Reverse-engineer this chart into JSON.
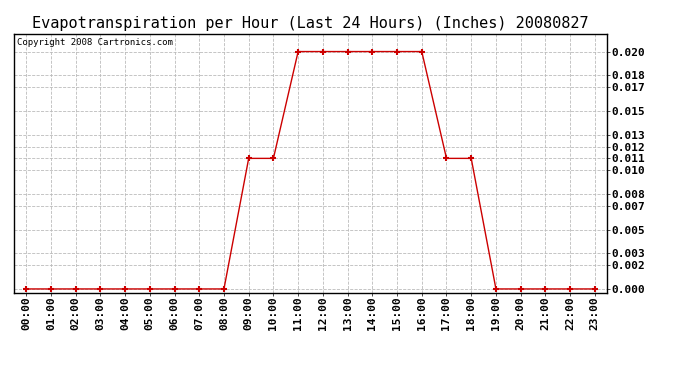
{
  "title": "Evapotranspiration per Hour (Last 24 Hours) (Inches) 20080827",
  "copyright_text": "Copyright 2008 Cartronics.com",
  "hours": [
    0,
    1,
    2,
    3,
    4,
    5,
    6,
    7,
    8,
    9,
    10,
    11,
    12,
    13,
    14,
    15,
    16,
    17,
    18,
    19,
    20,
    21,
    22,
    23
  ],
  "hour_labels": [
    "00:00",
    "01:00",
    "02:00",
    "03:00",
    "04:00",
    "05:00",
    "06:00",
    "07:00",
    "08:00",
    "09:00",
    "10:00",
    "11:00",
    "12:00",
    "13:00",
    "14:00",
    "15:00",
    "16:00",
    "17:00",
    "18:00",
    "19:00",
    "20:00",
    "21:00",
    "22:00",
    "23:00"
  ],
  "values": [
    0.0,
    0.0,
    0.0,
    0.0,
    0.0,
    0.0,
    0.0,
    0.0,
    0.0,
    0.011,
    0.011,
    0.02,
    0.02,
    0.02,
    0.02,
    0.02,
    0.02,
    0.011,
    0.011,
    0.0,
    0.0,
    0.0,
    0.0,
    0.0
  ],
  "line_color": "#cc0000",
  "marker_color": "#cc0000",
  "bg_color": "#ffffff",
  "grid_color": "#bbbbbb",
  "yticks": [
    0.0,
    0.002,
    0.003,
    0.005,
    0.007,
    0.008,
    0.01,
    0.011,
    0.012,
    0.013,
    0.015,
    0.017,
    0.018,
    0.02
  ],
  "title_fontsize": 11,
  "tick_fontsize": 8,
  "copyright_fontsize": 6.5
}
